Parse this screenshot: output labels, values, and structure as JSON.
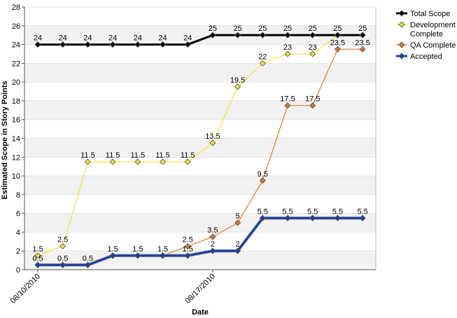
{
  "chart_data": {
    "type": "line",
    "title": "",
    "xlabel": "Date",
    "ylabel": "Estimated Scope in Story Points",
    "ylim": [
      0,
      28
    ],
    "y_ticks": [
      0,
      2,
      4,
      6,
      8,
      10,
      12,
      14,
      16,
      18,
      20,
      22,
      24,
      26,
      28
    ],
    "x_tick_labels": [
      {
        "index": 0,
        "label": "08/10/2010"
      },
      {
        "index": 7,
        "label": "08/17/2010"
      }
    ],
    "x": [
      "08/10/2010",
      "08/11/2010",
      "08/12/2010",
      "08/13/2010",
      "08/14/2010",
      "08/15/2010",
      "08/16/2010",
      "08/17/2010",
      "08/18/2010",
      "08/19/2010",
      "08/20/2010",
      "08/21/2010",
      "08/22/2010",
      "08/23/2010"
    ],
    "grid": "horizontal alternating bands",
    "legend_position": "right",
    "series": [
      {
        "name": "Total Scope",
        "color": "#000000",
        "marker": "#000000",
        "line_width": "thick",
        "values": [
          24,
          24,
          24,
          24,
          24,
          24,
          24,
          25,
          25,
          25,
          25,
          25,
          25,
          25
        ],
        "labels": [
          "24",
          "24",
          "24",
          "24",
          "24",
          "24",
          "24",
          "25",
          "25",
          "25",
          "25",
          "25",
          "25",
          "25"
        ]
      },
      {
        "name": "Development Complete",
        "legend_lines": [
          "Development",
          "Complete"
        ],
        "color": "#f0e84a",
        "marker": "#e8dc3a",
        "line_width": "thin",
        "values": [
          1.5,
          2.5,
          11.5,
          11.5,
          11.5,
          11.5,
          11.5,
          13.5,
          19.5,
          22,
          23,
          23,
          25,
          25
        ],
        "labels": [
          "1.5",
          "2.5",
          "11.5",
          "11.5",
          "11.5",
          "11.5",
          "11.5",
          "13.5",
          "19.5",
          "22",
          "23",
          "23",
          "",
          ""
        ]
      },
      {
        "name": "QA Complete",
        "color": "#e0883a",
        "marker": "#d0782a",
        "line_width": "thin",
        "values": [
          0.5,
          0.5,
          0.5,
          1.5,
          1.5,
          1.5,
          2.5,
          3.5,
          5,
          9.5,
          17.5,
          17.5,
          23.5,
          23.5
        ],
        "labels": [
          "0.5",
          "0.5",
          "0.5",
          "1.5",
          "1.5",
          "1.5",
          "2.5",
          "3.5",
          "5",
          "9.5",
          "17.5",
          "17.5",
          "23.5",
          "23.5"
        ]
      },
      {
        "name": "Accepted",
        "color": "#1a3fa0",
        "marker": "#1a3fa0",
        "line_width": "thick",
        "values": [
          0.5,
          0.5,
          0.5,
          1.5,
          1.5,
          1.5,
          1.5,
          2,
          2,
          5.5,
          5.5,
          5.5,
          5.5,
          5.5
        ],
        "labels": [
          "",
          "",
          "",
          "",
          "",
          "",
          "1.5",
          "2",
          "2",
          "5.5",
          "5.5",
          "5.5",
          "5.5",
          "5.5"
        ]
      }
    ]
  }
}
